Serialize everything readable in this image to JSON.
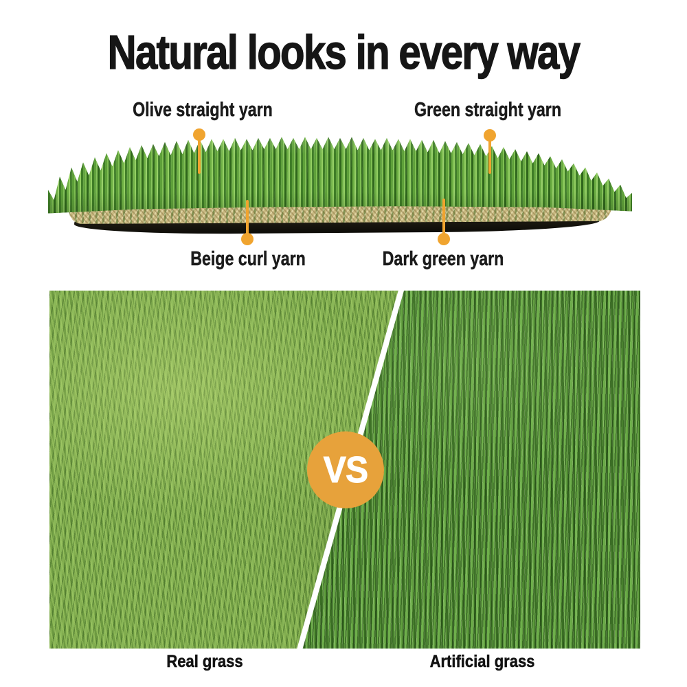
{
  "title": "Natural looks in every way",
  "sample": {
    "callouts": [
      {
        "id": "top-left",
        "label": "Olive straight yarn"
      },
      {
        "id": "top-right",
        "label": "Green straight yarn"
      },
      {
        "id": "bottom-left",
        "label": "Beige curl yarn"
      },
      {
        "id": "bottom-right",
        "label": "Dark green yarn"
      }
    ]
  },
  "comparison": {
    "vs_label": "VS",
    "left_label": "Real grass",
    "right_label": "Artificial grass"
  },
  "icons": {
    "callout_pin": "orange-dot-pin",
    "vs_badge": "orange-circle"
  },
  "colors": {
    "accent_orange": "#F0A42F",
    "vs_circle_orange": "#E7A23B",
    "divider_white": "#FFFFFF",
    "title_black": "#161616",
    "turf_green": "#4E8C31",
    "thatch_beige": "#C9B981",
    "backing_black": "#17150E",
    "real_grass_green": "#7CA94E",
    "artificial_grass_green": "#45812C"
  }
}
